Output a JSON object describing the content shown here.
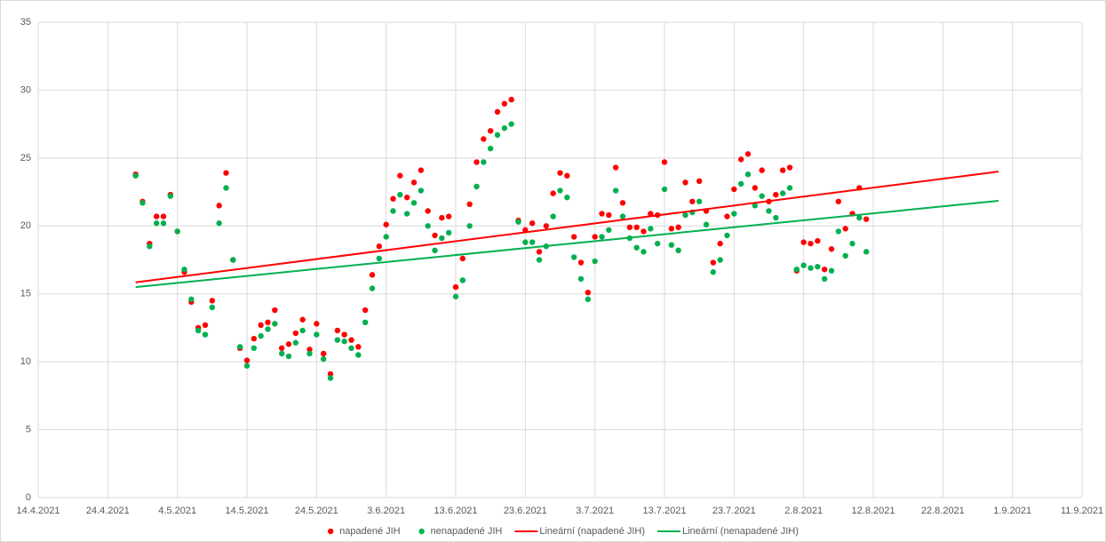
{
  "chart_data": {
    "type": "scatter",
    "x": [
      "28.4.2021",
      "29.4.2021",
      "30.4.2021",
      "1.5.2021",
      "2.5.2021",
      "3.5.2021",
      "4.5.2021",
      "5.5.2021",
      "6.5.2021",
      "7.5.2021",
      "8.5.2021",
      "9.5.2021",
      "10.5.2021",
      "11.5.2021",
      "12.5.2021",
      "13.5.2021",
      "14.5.2021",
      "15.5.2021",
      "16.5.2021",
      "17.5.2021",
      "18.5.2021",
      "19.5.2021",
      "20.5.2021",
      "21.5.2021",
      "22.5.2021",
      "23.5.2021",
      "24.5.2021",
      "25.5.2021",
      "26.5.2021",
      "27.5.2021",
      "28.5.2021",
      "29.5.2021",
      "30.5.2021",
      "31.5.2021",
      "1.6.2021",
      "2.6.2021",
      "3.6.2021",
      "4.6.2021",
      "5.6.2021",
      "6.6.2021",
      "7.6.2021",
      "8.6.2021",
      "9.6.2021",
      "10.6.2021",
      "11.6.2021",
      "12.6.2021",
      "13.6.2021",
      "14.6.2021",
      "15.6.2021",
      "16.6.2021",
      "17.6.2021",
      "18.6.2021",
      "19.6.2021",
      "20.6.2021",
      "21.6.2021",
      "22.6.2021",
      "23.6.2021",
      "24.6.2021",
      "25.6.2021",
      "26.6.2021",
      "27.6.2021",
      "28.6.2021",
      "29.6.2021",
      "30.6.2021",
      "1.7.2021",
      "2.7.2021",
      "3.7.2021",
      "4.7.2021",
      "5.7.2021",
      "6.7.2021",
      "7.7.2021",
      "8.7.2021",
      "9.7.2021",
      "10.7.2021",
      "11.7.2021",
      "12.7.2021",
      "13.7.2021",
      "14.7.2021",
      "15.7.2021",
      "16.7.2021",
      "17.7.2021",
      "18.7.2021",
      "19.7.2021",
      "20.7.2021",
      "21.7.2021",
      "22.7.2021",
      "23.7.2021",
      "24.7.2021",
      "25.7.2021",
      "26.7.2021",
      "27.7.2021",
      "28.7.2021",
      "29.7.2021",
      "30.7.2021",
      "31.7.2021",
      "1.8.2021",
      "2.8.2021",
      "3.8.2021",
      "4.8.2021",
      "5.8.2021",
      "6.8.2021",
      "7.8.2021",
      "8.8.2021",
      "9.8.2021",
      "10.8.2021",
      "11.8.2021"
    ],
    "series": [
      {
        "name": "napadené JIH",
        "color": "#ff0000",
        "type": "scatter",
        "values": [
          23.8,
          21.8,
          18.7,
          20.7,
          20.7,
          22.3,
          19.6,
          16.6,
          14.4,
          12.5,
          12.7,
          14.5,
          21.5,
          23.9,
          17.5,
          11.0,
          10.1,
          11.7,
          12.7,
          12.9,
          13.8,
          11.0,
          11.3,
          12.1,
          13.1,
          10.9,
          12.8,
          10.6,
          9.1,
          12.3,
          12.0,
          11.6,
          11.1,
          13.8,
          16.4,
          18.5,
          20.1,
          22.0,
          23.7,
          22.1,
          23.2,
          24.1,
          21.1,
          19.3,
          20.6,
          20.7,
          15.5,
          17.6,
          21.6,
          24.7,
          26.4,
          27.0,
          28.4,
          29.0,
          29.3,
          20.4,
          19.7,
          20.2,
          18.1,
          20.0,
          22.4,
          23.9,
          23.7,
          19.2,
          17.3,
          15.1,
          19.2,
          20.9,
          20.8,
          24.3,
          21.7,
          19.9,
          19.9,
          19.6,
          20.9,
          20.8,
          24.7,
          19.8,
          19.9,
          23.2,
          21.8,
          23.3,
          21.1,
          17.3,
          18.7,
          20.7,
          22.7,
          24.9,
          25.3,
          22.8,
          24.1,
          21.8,
          22.3,
          24.1,
          24.3,
          16.7,
          18.8,
          18.7,
          18.9,
          16.8,
          18.3,
          21.8,
          19.8,
          20.9,
          22.8,
          20.5
        ]
      },
      {
        "name": "nenapadené JIH",
        "color": "#00b050",
        "type": "scatter",
        "values": [
          23.7,
          21.7,
          18.5,
          20.2,
          20.2,
          22.2,
          19.6,
          16.8,
          14.6,
          12.3,
          12.0,
          14.0,
          20.2,
          22.8,
          17.5,
          11.1,
          9.7,
          11.0,
          11.9,
          12.4,
          12.8,
          10.6,
          10.4,
          11.4,
          12.3,
          10.6,
          12.0,
          10.2,
          8.8,
          11.6,
          11.5,
          11.0,
          10.5,
          12.9,
          15.4,
          17.6,
          19.2,
          21.1,
          22.3,
          20.9,
          21.7,
          22.6,
          20.0,
          18.2,
          19.1,
          19.5,
          14.8,
          16.0,
          20.0,
          22.9,
          24.7,
          25.7,
          26.7,
          27.2,
          27.5,
          20.3,
          18.8,
          18.8,
          17.5,
          18.5,
          20.7,
          22.6,
          22.1,
          17.7,
          16.1,
          14.6,
          17.4,
          19.2,
          19.7,
          22.6,
          20.7,
          19.1,
          18.4,
          18.1,
          19.8,
          18.7,
          22.7,
          18.6,
          18.2,
          20.8,
          21.0,
          21.8,
          20.1,
          16.6,
          17.5,
          19.3,
          20.9,
          23.1,
          23.8,
          21.5,
          22.2,
          21.1,
          20.6,
          22.4,
          22.8,
          16.8,
          17.1,
          16.9,
          17.0,
          16.1,
          16.7,
          19.6,
          17.8,
          18.7,
          20.6,
          18.1
        ]
      },
      {
        "name": "Lineární (napadené JIH)",
        "color": "#ff0000",
        "type": "line",
        "x": [
          "28.4.2021",
          "30.8.2021"
        ],
        "values": [
          15.85,
          24.0
        ]
      },
      {
        "name": "Lineární (nenapadené JIH)",
        "color": "#00b050",
        "type": "line",
        "x": [
          "28.4.2021",
          "30.8.2021"
        ],
        "values": [
          15.5,
          21.85
        ]
      }
    ],
    "xlim": [
      "14.4.2021",
      "11.9.2021"
    ],
    "xticks": [
      "14.4.2021",
      "24.4.2021",
      "4.5.2021",
      "14.5.2021",
      "24.5.2021",
      "3.6.2021",
      "13.6.2021",
      "23.6.2021",
      "3.7.2021",
      "13.7.2021",
      "23.7.2021",
      "2.8.2021",
      "12.8.2021",
      "22.8.2021",
      "1.9.2021",
      "11.9.2021"
    ],
    "ylim": [
      0,
      35
    ],
    "yticks": [
      0,
      5,
      10,
      15,
      20,
      25,
      30,
      35
    ],
    "grid": true,
    "legend": "bottom"
  }
}
